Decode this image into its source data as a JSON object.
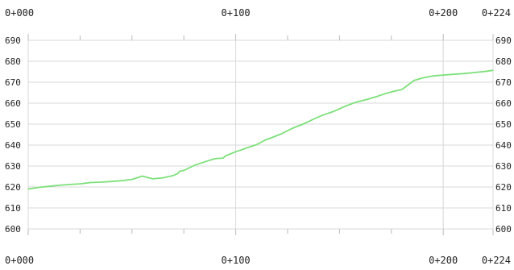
{
  "chart_data": {
    "type": "line",
    "title": "",
    "xlabel": "",
    "ylabel": "",
    "xlim": [
      0,
      224
    ],
    "ylim": [
      600,
      690
    ],
    "grid": true,
    "line_color": "#7de07a",
    "grid_color": "#d8d8d8",
    "y_ticks": [
      600,
      610,
      620,
      630,
      640,
      650,
      660,
      670,
      680,
      690
    ],
    "y_tick_labels": [
      "600",
      "610",
      "620",
      "630",
      "640",
      "650",
      "660",
      "670",
      "680",
      "690"
    ],
    "x_ticks": [
      0,
      100,
      200,
      224
    ],
    "x_tick_labels": [
      "0+000",
      "0+100",
      "0+200",
      "0+224"
    ],
    "minor_x_ticks": [
      25,
      50,
      75,
      125,
      150,
      175
    ],
    "series": [
      {
        "name": "",
        "x": [
          0,
          5,
          10,
          15,
          20,
          25,
          30,
          35,
          40,
          45,
          50,
          55,
          60,
          65,
          70,
          72,
          73,
          75,
          80,
          85,
          90,
          94,
          95,
          100,
          105,
          110,
          112,
          114,
          118,
          122,
          125,
          128,
          132,
          135,
          138,
          142,
          147,
          153,
          158,
          163,
          165,
          168,
          172,
          176,
          180,
          182,
          186,
          190,
          195,
          200,
          205,
          210,
          215,
          220,
          224
        ],
        "y": [
          619,
          619.8,
          620.3,
          620.8,
          621.2,
          621.5,
          622.1,
          622.3,
          622.6,
          623,
          623.6,
          625.2,
          623.9,
          624.4,
          625.5,
          626.4,
          627.5,
          627.9,
          630.3,
          632,
          633.5,
          633.8,
          634.8,
          636.8,
          638.5,
          640.2,
          641.2,
          642.3,
          643.8,
          645.4,
          646.9,
          648.3,
          649.8,
          651.2,
          652.6,
          654.3,
          656,
          658.6,
          660.5,
          661.7,
          662.3,
          663.2,
          664.5,
          665.6,
          666.5,
          667.9,
          670.9,
          672,
          673,
          673.4,
          673.8,
          674.1,
          674.6,
          675.1,
          675.7
        ]
      }
    ]
  }
}
